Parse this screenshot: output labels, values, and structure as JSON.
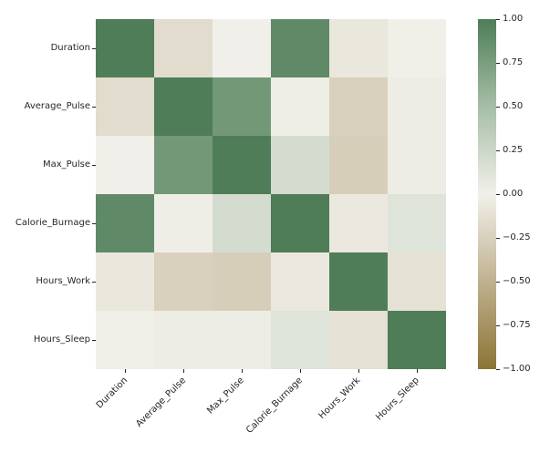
{
  "background_color": "#ffffff",
  "text_color": "#262626",
  "chart_data": {
    "type": "heatmap",
    "title": "",
    "xlabel": "",
    "ylabel": "",
    "labels": [
      "Duration",
      "Average_Pulse",
      "Max_Pulse",
      "Calorie_Burnage",
      "Hours_Work",
      "Hours_Sleep"
    ],
    "matrix": [
      [
        1.0,
        -0.16,
        0.01,
        0.9,
        -0.07,
        -0.01
      ],
      [
        -0.16,
        1.0,
        0.79,
        0.02,
        -0.25,
        0.03
      ],
      [
        0.01,
        0.79,
        1.0,
        0.2,
        -0.27,
        0.03
      ],
      [
        0.9,
        0.02,
        0.2,
        1.0,
        -0.06,
        0.12
      ],
      [
        -0.07,
        -0.25,
        -0.27,
        -0.06,
        1.0,
        -0.12
      ],
      [
        -0.01,
        0.03,
        0.03,
        0.12,
        -0.12,
        1.0
      ]
    ],
    "vmin": -1.0,
    "vmax": 1.0,
    "grid": false,
    "legend_position": "right-colorbar",
    "colorbar": {
      "tick_labels": [
        "1.00",
        "0.75",
        "0.50",
        "0.25",
        "0.00",
        "−0.25",
        "−0.50",
        "−0.75",
        "−1.00"
      ],
      "tick_values": [
        1.0,
        0.75,
        0.5,
        0.25,
        0.0,
        -0.25,
        -0.5,
        -0.75,
        -1.0
      ]
    },
    "colormap_stops": [
      {
        "value": -1.0,
        "color": "#8b7435"
      },
      {
        "value": -0.5,
        "color": "#c0b190"
      },
      {
        "value": 0.0,
        "color": "#f1f0ea"
      },
      {
        "value": 0.5,
        "color": "#a6bea6"
      },
      {
        "value": 1.0,
        "color": "#4e7d57"
      }
    ]
  }
}
